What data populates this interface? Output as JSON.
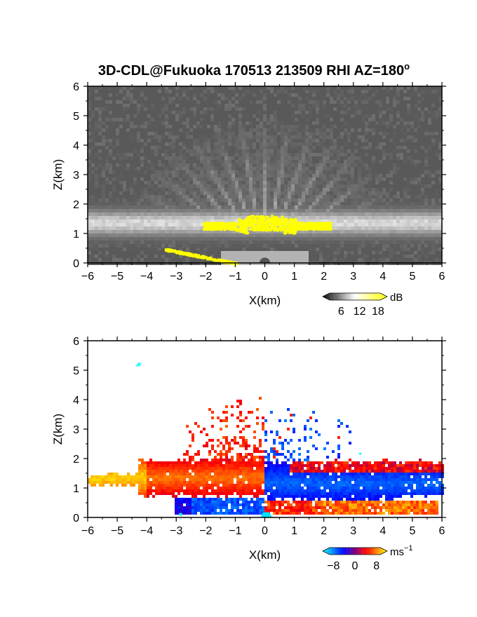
{
  "title": "3D-CDL@Fukuoka 170513 213509 RHI AZ=180",
  "title_degree": "o",
  "chart_data": [
    {
      "type": "heatmap",
      "title": "3D-CDL@Fukuoka 170513 213509 RHI AZ=180°",
      "xlabel": "X(km)",
      "ylabel": "Z(km)",
      "xlim": [
        -6,
        6
      ],
      "ylim": [
        0,
        6
      ],
      "x_ticks": [
        "-6",
        "-5",
        "-4",
        "-3",
        "-2",
        "-1",
        "0",
        "1",
        "2",
        "3",
        "4",
        "5",
        "6"
      ],
      "y_ticks": [
        "0",
        "1",
        "2",
        "3",
        "4",
        "5",
        "6"
      ],
      "colorbar": {
        "unit": "dB",
        "ticks": [
          "6",
          "12",
          "18"
        ],
        "range": [
          0,
          21
        ],
        "colors": [
          "#000000",
          "#ffffff",
          "#ffff00"
        ]
      },
      "features": [
        {
          "label": "bright layer",
          "x": [
            -6,
            6
          ],
          "z": [
            0.9,
            1.9
          ],
          "value_db": 12
        },
        {
          "label": "strong echo",
          "x": [
            -2.1,
            2.2
          ],
          "z": [
            1.05,
            1.55
          ],
          "value_db": 19
        },
        {
          "label": "ground clutter",
          "x": [
            -3.5,
            -1.1
          ],
          "z": [
            0.0,
            0.5
          ],
          "value_db": 19
        }
      ]
    },
    {
      "type": "heatmap",
      "xlabel": "X(km)",
      "ylabel": "Z(km)",
      "xlim": [
        -6,
        6
      ],
      "ylim": [
        0,
        6
      ],
      "x_ticks": [
        "-6",
        "-5",
        "-4",
        "-3",
        "-2",
        "-1",
        "0",
        "1",
        "2",
        "3",
        "4",
        "5",
        "6"
      ],
      "y_ticks": [
        "0",
        "1",
        "2",
        "3",
        "4",
        "5",
        "6"
      ],
      "colorbar": {
        "unit": "ms",
        "unit_exp": "−1",
        "ticks": [
          "−8",
          "0",
          "8"
        ],
        "range": [
          -12,
          12
        ],
        "colors": [
          "#00ffff",
          "#0000ff",
          "#ff0000",
          "#ffff00"
        ]
      },
      "features": [
        {
          "label": "positive velocity layer",
          "x": [
            -6,
            0
          ],
          "z": [
            0.5,
            2.0
          ],
          "value_ms": 5
        },
        {
          "label": "negative velocity layer",
          "x": [
            0,
            6
          ],
          "z": [
            0.4,
            1.9
          ],
          "value_ms": -7
        },
        {
          "label": "low-level negative",
          "x": [
            -3.1,
            0
          ],
          "z": [
            0.05,
            0.75
          ],
          "value_ms": -7
        },
        {
          "label": "low-level positive",
          "x": [
            0,
            5.8
          ],
          "z": [
            0.05,
            0.65
          ],
          "value_ms": 5
        }
      ]
    }
  ]
}
